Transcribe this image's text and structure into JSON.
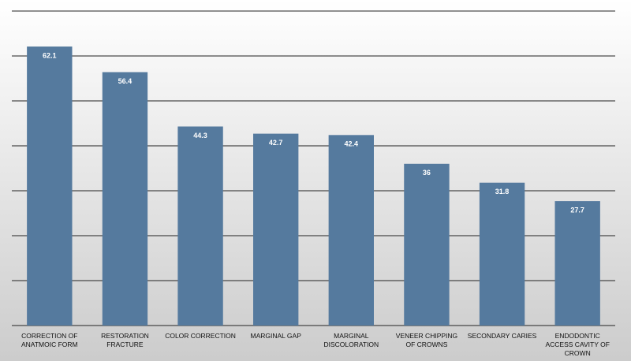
{
  "chart_data": {
    "type": "bar",
    "categories": [
      "CORRECTION OF ANATMOIC FORM",
      "RESTORATION FRACTURE",
      "COLOR CORRECTION",
      "MARGINAL GAP",
      "MARGINAL DISCOLORATION",
      "VENEER CHIPPING OF CROWNS",
      "SECONDARY CARIES",
      "ENDODONTIC ACCESS CAVITY OF CROWN"
    ],
    "values": [
      62.1,
      56.4,
      44.3,
      42.7,
      42.4,
      36,
      31.8,
      27.7
    ],
    "color": "#557a9e",
    "ylim": [
      0,
      70
    ],
    "yticks": [
      0,
      10,
      20,
      30,
      40,
      50,
      60,
      70
    ],
    "grid": true
  }
}
